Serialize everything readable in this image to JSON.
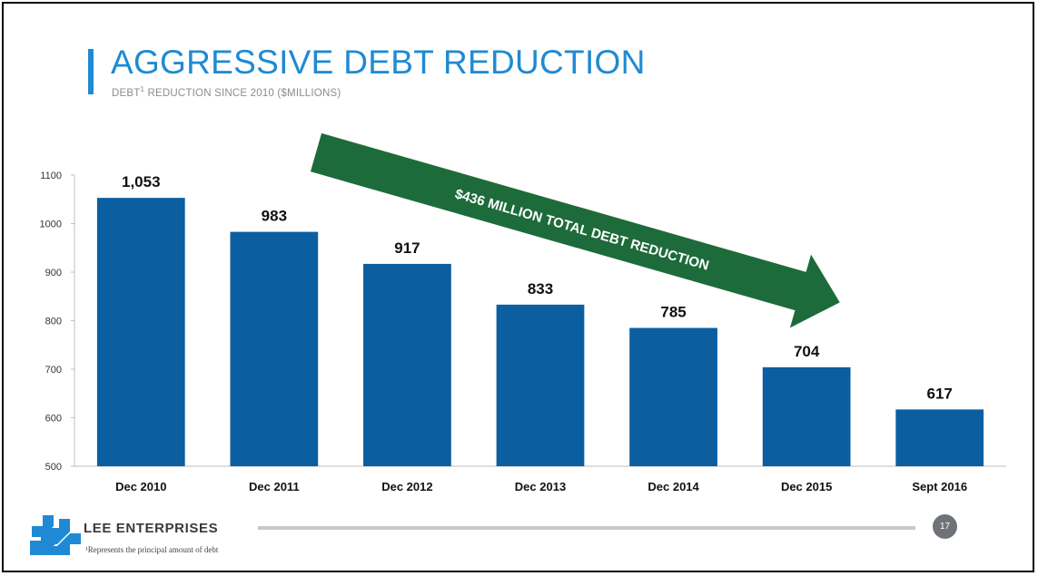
{
  "header": {
    "title": "AGGRESSIVE DEBT REDUCTION",
    "subtitle_prefix": "DEBT",
    "subtitle_sup": "1",
    "subtitle_rest": " REDUCTION SINCE 2010 ($MILLIONS)"
  },
  "annotation": {
    "arrow_text": "$436 MILLION TOTAL DEBT REDUCTION",
    "arrow_color": "#1d6b3a"
  },
  "footer": {
    "brand": "LEE ENTERPRISES",
    "page_number": "17",
    "footnote": "¹Represents the principal amount of debt"
  },
  "colors": {
    "accent": "#1f8ad3",
    "bar": "#0b5ea0"
  },
  "chart_data": {
    "type": "bar",
    "categories": [
      "Dec 2010",
      "Dec 2011",
      "Dec 2012",
      "Dec 2013",
      "Dec 2014",
      "Dec 2015",
      "Sept 2016"
    ],
    "values": [
      1053,
      983,
      917,
      833,
      785,
      704,
      617
    ],
    "data_labels": [
      "1,053",
      "983",
      "917",
      "833",
      "785",
      "704",
      "617"
    ],
    "ylim": [
      500,
      1100
    ],
    "yticks": [
      500,
      600,
      700,
      800,
      900,
      1000,
      1100
    ],
    "grid": false,
    "legend": "none"
  }
}
